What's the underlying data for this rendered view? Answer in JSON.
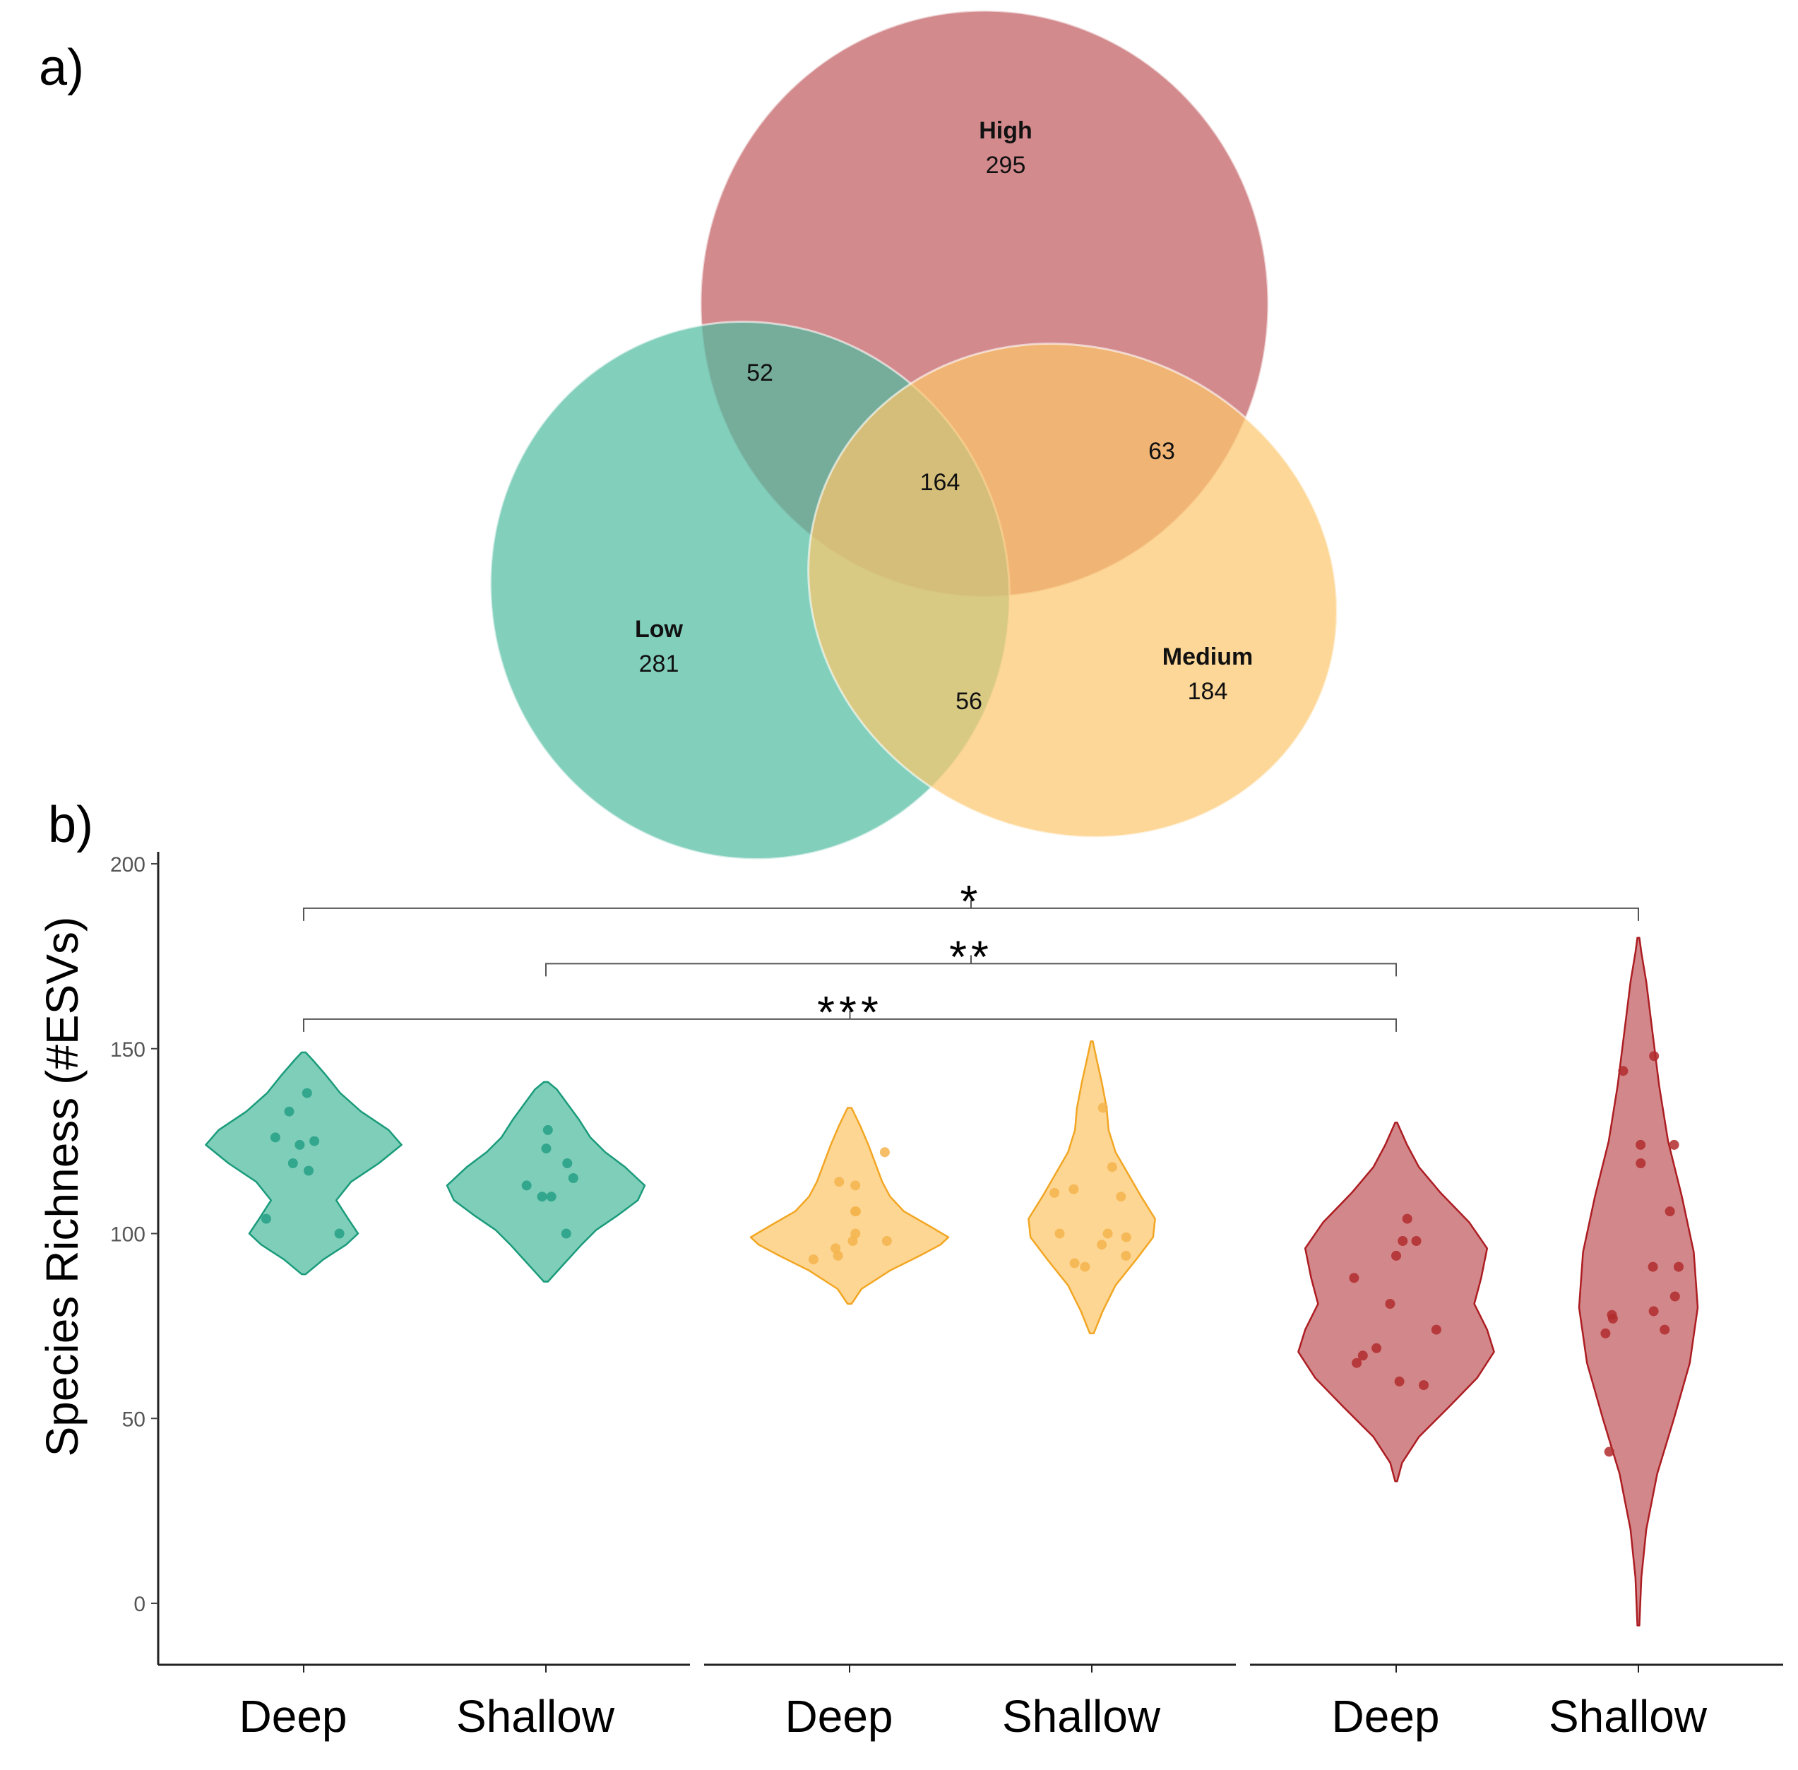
{
  "panels": {
    "a": {
      "label": "a)"
    },
    "b": {
      "label": "b)"
    }
  },
  "chart_data": [
    {
      "type": "venn",
      "sets": [
        {
          "name": "High",
          "count": 295,
          "color": "#c0595d"
        },
        {
          "name": "Low",
          "count": 281,
          "color": "#4dbba0"
        },
        {
          "name": "Medium",
          "count": 184,
          "color": "#fcc66b"
        }
      ],
      "intersections": [
        {
          "sets": [
            "High",
            "Low"
          ],
          "count": 52
        },
        {
          "sets": [
            "High",
            "Medium"
          ],
          "count": 63
        },
        {
          "sets": [
            "Low",
            "Medium"
          ],
          "count": 56
        },
        {
          "sets": [
            "High",
            "Low",
            "Medium"
          ],
          "count": 164
        }
      ]
    },
    {
      "type": "violin",
      "ylabel": "Species Richness (#ESVs)",
      "xlabel": "",
      "ylim": [
        -15,
        215
      ],
      "yticks": [
        0,
        50,
        100,
        150,
        200
      ],
      "grid": false,
      "groups": [
        {
          "color": "#4dbba0",
          "stroke": "#1a9b7b",
          "point": "#26a085",
          "categories": [
            {
              "label": "Deep",
              "ymin": 89,
              "ymax": 149,
              "profile": [
                [
                  89,
                  0.02
                ],
                [
                  93,
                  0.2
                ],
                [
                  97,
                  0.43
                ],
                [
                  100,
                  0.55
                ],
                [
                  104,
                  0.45
                ],
                [
                  109,
                  0.33
                ],
                [
                  114,
                  0.48
                ],
                [
                  119,
                  0.76
                ],
                [
                  124,
                  0.99
                ],
                [
                  128,
                  0.86
                ],
                [
                  133,
                  0.58
                ],
                [
                  138,
                  0.37
                ],
                [
                  143,
                  0.22
                ],
                [
                  147,
                  0.09
                ],
                [
                  149,
                  0.02
                ]
              ],
              "points": [
                100,
                104,
                117,
                119,
                124,
                125,
                126,
                133,
                138
              ]
            },
            {
              "label": "Shallow",
              "ymin": 87,
              "ymax": 141,
              "profile": [
                [
                  87,
                  0.02
                ],
                [
                  92,
                  0.19
                ],
                [
                  97,
                  0.36
                ],
                [
                  101,
                  0.51
                ],
                [
                  105,
                  0.73
                ],
                [
                  109,
                  0.93
                ],
                [
                  113,
                  1.0
                ],
                [
                  118,
                  0.8
                ],
                [
                  122,
                  0.6
                ],
                [
                  126,
                  0.45
                ],
                [
                  131,
                  0.33
                ],
                [
                  135,
                  0.22
                ],
                [
                  139,
                  0.11
                ],
                [
                  141,
                  0.02
                ]
              ],
              "points": [
                100,
                110,
                110,
                113,
                115,
                119,
                123,
                128
              ]
            }
          ]
        },
        {
          "color": "#fcc66b",
          "stroke": "#f2a623",
          "point": "#f5b44c",
          "categories": [
            {
              "label": "Deep",
              "ymin": 81,
              "ymax": 134,
              "profile": [
                [
                  81,
                  0.02
                ],
                [
                  85,
                  0.12
                ],
                [
                  90,
                  0.41
                ],
                [
                  94,
                  0.71
                ],
                [
                  97,
                  0.92
                ],
                [
                  99,
                  1.0
                ],
                [
                  102,
                  0.81
                ],
                [
                  106,
                  0.55
                ],
                [
                  110,
                  0.41
                ],
                [
                  114,
                  0.33
                ],
                [
                  119,
                  0.26
                ],
                [
                  124,
                  0.19
                ],
                [
                  129,
                  0.11
                ],
                [
                  134,
                  0.02
                ]
              ],
              "points": [
                93,
                94,
                96,
                98,
                98,
                100,
                106,
                106,
                113,
                114,
                122
              ]
            },
            {
              "label": "Shallow",
              "ymin": 73,
              "ymax": 152,
              "profile": [
                [
                  73,
                  0.02
                ],
                [
                  79,
                  0.11
                ],
                [
                  86,
                  0.24
                ],
                [
                  93,
                  0.45
                ],
                [
                  99,
                  0.62
                ],
                [
                  104,
                  0.64
                ],
                [
                  110,
                  0.5
                ],
                [
                  116,
                  0.37
                ],
                [
                  122,
                  0.24
                ],
                [
                  128,
                  0.17
                ],
                [
                  134,
                  0.15
                ],
                [
                  141,
                  0.1
                ],
                [
                  147,
                  0.05
                ],
                [
                  152,
                  0.01
                ]
              ],
              "points": [
                91,
                92,
                94,
                97,
                99,
                100,
                100,
                110,
                111,
                112,
                118,
                134
              ]
            }
          ]
        },
        {
          "color": "#c0595d",
          "stroke": "#ac1d22",
          "point": "#b22b2d",
          "categories": [
            {
              "label": "Deep",
              "ymin": 33,
              "ymax": 130,
              "profile": [
                [
                  33,
                  0.01
                ],
                [
                  38,
                  0.06
                ],
                [
                  45,
                  0.23
                ],
                [
                  53,
                  0.53
                ],
                [
                  61,
                  0.82
                ],
                [
                  68,
                  0.99
                ],
                [
                  74,
                  0.92
                ],
                [
                  81,
                  0.79
                ],
                [
                  88,
                  0.86
                ],
                [
                  96,
                  0.92
                ],
                [
                  103,
                  0.74
                ],
                [
                  111,
                  0.45
                ],
                [
                  118,
                  0.23
                ],
                [
                  124,
                  0.11
                ],
                [
                  130,
                  0.01
                ]
              ],
              "points": [
                59,
                60,
                65,
                67,
                69,
                74,
                81,
                88,
                94,
                98,
                98,
                104
              ]
            },
            {
              "label": "Shallow",
              "ymin": -6,
              "ymax": 180,
              "profile": [
                [
                  -6,
                  0.01
                ],
                [
                  7,
                  0.03
                ],
                [
                  20,
                  0.08
                ],
                [
                  35,
                  0.19
                ],
                [
                  50,
                  0.36
                ],
                [
                  65,
                  0.52
                ],
                [
                  80,
                  0.6
                ],
                [
                  95,
                  0.56
                ],
                [
                  110,
                  0.44
                ],
                [
                  125,
                  0.3
                ],
                [
                  140,
                  0.21
                ],
                [
                  155,
                  0.14
                ],
                [
                  168,
                  0.08
                ],
                [
                  176,
                  0.03
                ],
                [
                  180,
                  0.01
                ]
              ],
              "points": [
                41,
                73,
                74,
                77,
                78,
                79,
                83,
                91,
                91,
                106,
                119,
                124,
                124,
                144,
                148
              ]
            }
          ]
        }
      ],
      "comparisons": [
        {
          "from": [
            0,
            0
          ],
          "to": [
            2,
            1
          ],
          "y": 188,
          "label": "*"
        },
        {
          "from": [
            0,
            1
          ],
          "to": [
            2,
            0
          ],
          "y": 173,
          "label": "**"
        },
        {
          "from": [
            0,
            0
          ],
          "to": [
            2,
            0
          ],
          "y": 158,
          "label": "***"
        }
      ]
    }
  ]
}
